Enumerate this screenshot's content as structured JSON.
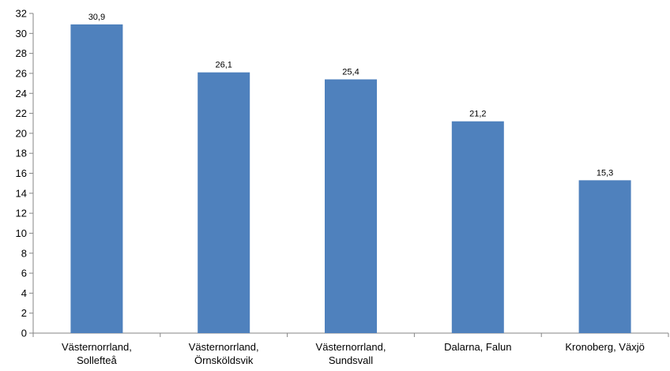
{
  "chart_data": {
    "type": "bar",
    "categories": [
      [
        "Västernorrland,",
        "Sollefteå"
      ],
      [
        "Västernorrland,",
        "Örnsköldsvik"
      ],
      [
        "Västernorrland,",
        "Sundsvall"
      ],
      [
        "Dalarna, Falun"
      ],
      [
        "Kronoberg, Växjö"
      ]
    ],
    "values": [
      30.9,
      26.1,
      25.4,
      21.2,
      15.3
    ],
    "data_labels": [
      "30,9",
      "26,1",
      "25,4",
      "21,2",
      "15,3"
    ],
    "ylim": [
      0,
      32
    ],
    "yticks": [
      0,
      2,
      4,
      6,
      8,
      10,
      12,
      14,
      16,
      18,
      20,
      22,
      24,
      26,
      28,
      30,
      32
    ],
    "bar_color": "#4F81BD",
    "axis_color": "#868686",
    "grid": false,
    "legend": "none"
  }
}
